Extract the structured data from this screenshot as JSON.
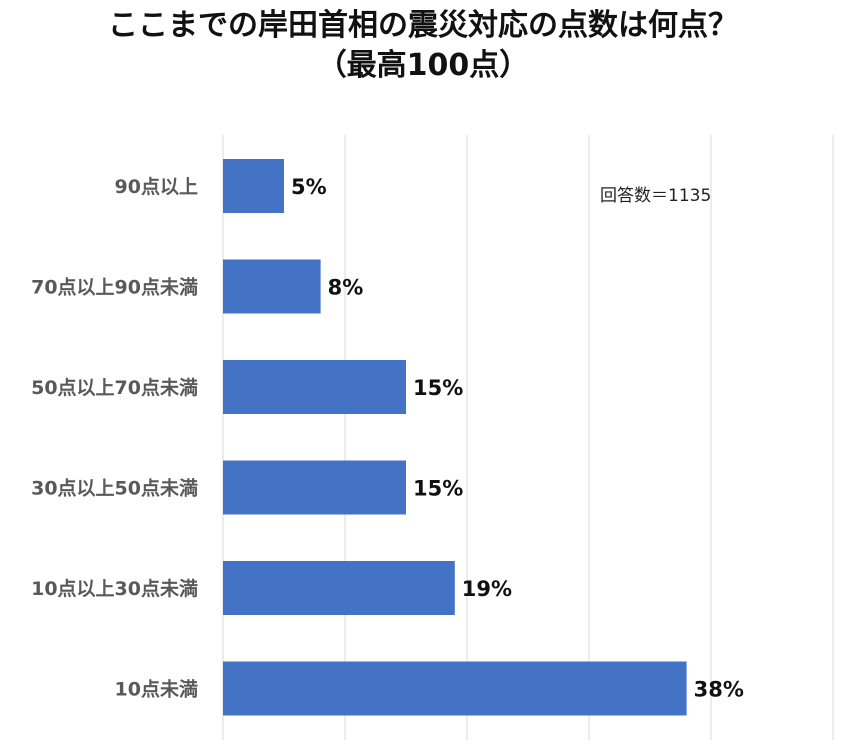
{
  "chart_data": {
    "type": "bar",
    "orientation": "horizontal",
    "title": "ここまでの岸田首相の震災対応の点数は何点？",
    "subtitle": "（最高100点）",
    "categories": [
      "90点以上",
      "70点以上90点未満",
      "50点以上70点未満",
      "30点以上50点未満",
      "10点以上30点未満",
      "10点未満"
    ],
    "values": [
      5,
      8,
      15,
      15,
      19,
      38
    ],
    "value_labels": [
      "5%",
      "8%",
      "15%",
      "15%",
      "19%",
      "38%"
    ],
    "unit": "%",
    "xlim": [
      0,
      50
    ],
    "grid": true,
    "bar_color": "#4472C4",
    "gridline_color": "#D9D9D9",
    "annotation": "回答数＝1135"
  }
}
